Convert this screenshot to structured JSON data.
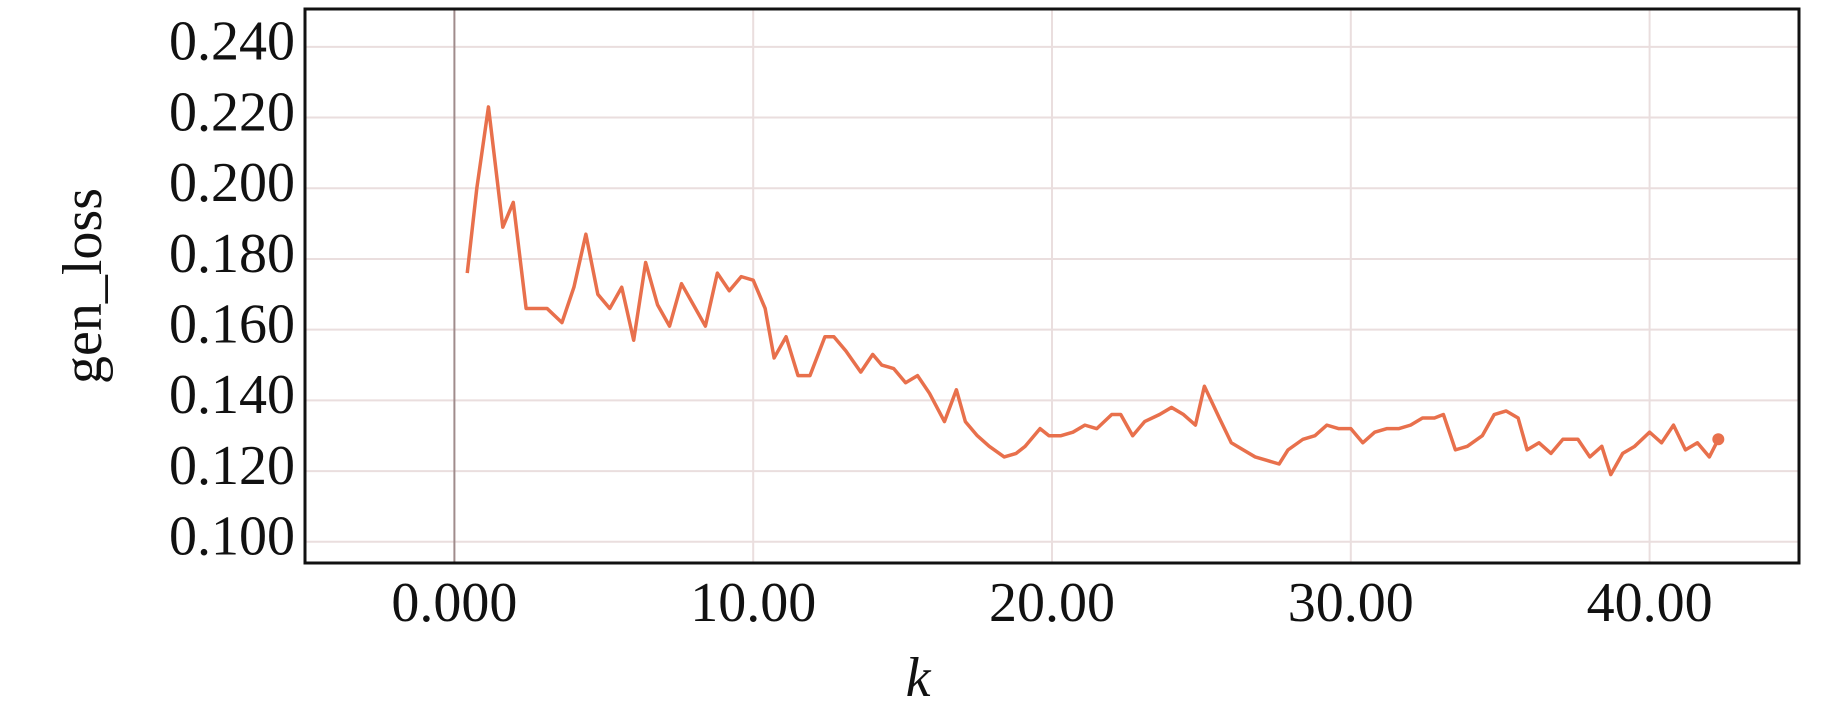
{
  "chart_data": {
    "type": "line",
    "x_label": "k",
    "y_label": "gen_loss",
    "xlim": [
      -5,
      45
    ],
    "ylim": [
      0.094,
      0.2507
    ],
    "xticks": [
      {
        "value": 0,
        "label": "0.000"
      },
      {
        "value": 10,
        "label": "10.00"
      },
      {
        "value": 20,
        "label": "20.00"
      },
      {
        "value": 30,
        "label": "30.00"
      },
      {
        "value": 40,
        "label": "40.00"
      }
    ],
    "yticks": [
      {
        "value": 0.1,
        "label": "0.100"
      },
      {
        "value": 0.12,
        "label": "0.120"
      },
      {
        "value": 0.14,
        "label": "0.140"
      },
      {
        "value": 0.16,
        "label": "0.160"
      },
      {
        "value": 0.18,
        "label": "0.180"
      },
      {
        "value": 0.2,
        "label": "0.200"
      },
      {
        "value": 0.22,
        "label": "0.220"
      },
      {
        "value": 0.24,
        "label": "0.240"
      }
    ],
    "grid": true,
    "x": [
      0.43,
      0.75,
      1.14,
      1.62,
      1.97,
      2.4,
      3.1,
      3.6,
      4.0,
      4.4,
      4.8,
      5.2,
      5.6,
      6.0,
      6.4,
      6.8,
      7.2,
      7.6,
      8.0,
      8.4,
      8.8,
      9.2,
      9.6,
      10.0,
      10.4,
      10.7,
      11.1,
      11.5,
      11.9,
      12.4,
      12.7,
      13.1,
      13.6,
      14.0,
      14.3,
      14.7,
      15.1,
      15.5,
      15.9,
      16.4,
      16.8,
      17.1,
      17.5,
      17.9,
      18.4,
      18.8,
      19.1,
      19.6,
      19.9,
      20.3,
      20.7,
      21.1,
      21.5,
      22.0,
      22.3,
      22.7,
      23.1,
      23.6,
      24.0,
      24.4,
      24.8,
      25.1,
      25.6,
      26.0,
      26.4,
      26.8,
      27.2,
      27.6,
      27.9,
      28.4,
      28.8,
      29.2,
      29.6,
      30.0,
      30.4,
      30.8,
      31.2,
      31.6,
      32.0,
      32.4,
      32.8,
      33.1,
      33.5,
      33.9,
      34.4,
      34.8,
      35.2,
      35.6,
      35.9,
      36.3,
      36.7,
      37.1,
      37.6,
      38.0,
      38.4,
      38.7,
      39.1,
      39.5,
      40.0,
      40.4,
      40.8,
      41.2,
      41.6,
      42.0,
      42.3
    ],
    "series": [
      {
        "name": "gen_loss",
        "color": "#e8704c",
        "values": [
          0.176,
          0.2,
          0.223,
          0.189,
          0.196,
          0.166,
          0.166,
          0.162,
          0.172,
          0.187,
          0.17,
          0.166,
          0.172,
          0.157,
          0.179,
          0.167,
          0.161,
          0.173,
          0.167,
          0.161,
          0.176,
          0.171,
          0.175,
          0.174,
          0.166,
          0.152,
          0.158,
          0.147,
          0.147,
          0.158,
          0.158,
          0.154,
          0.148,
          0.153,
          0.15,
          0.149,
          0.145,
          0.147,
          0.142,
          0.134,
          0.143,
          0.134,
          0.13,
          0.127,
          0.124,
          0.125,
          0.127,
          0.132,
          0.13,
          0.13,
          0.131,
          0.133,
          0.132,
          0.136,
          0.136,
          0.13,
          0.134,
          0.136,
          0.138,
          0.136,
          0.133,
          0.144,
          0.135,
          0.128,
          0.126,
          0.124,
          0.123,
          0.122,
          0.126,
          0.129,
          0.13,
          0.133,
          0.132,
          0.132,
          0.128,
          0.131,
          0.132,
          0.132,
          0.133,
          0.135,
          0.135,
          0.136,
          0.126,
          0.127,
          0.13,
          0.136,
          0.137,
          0.135,
          0.126,
          0.128,
          0.125,
          0.129,
          0.129,
          0.124,
          0.127,
          0.119,
          0.125,
          0.127,
          0.131,
          0.128,
          0.133,
          0.126,
          0.128,
          0.124,
          0.129
        ]
      }
    ]
  }
}
